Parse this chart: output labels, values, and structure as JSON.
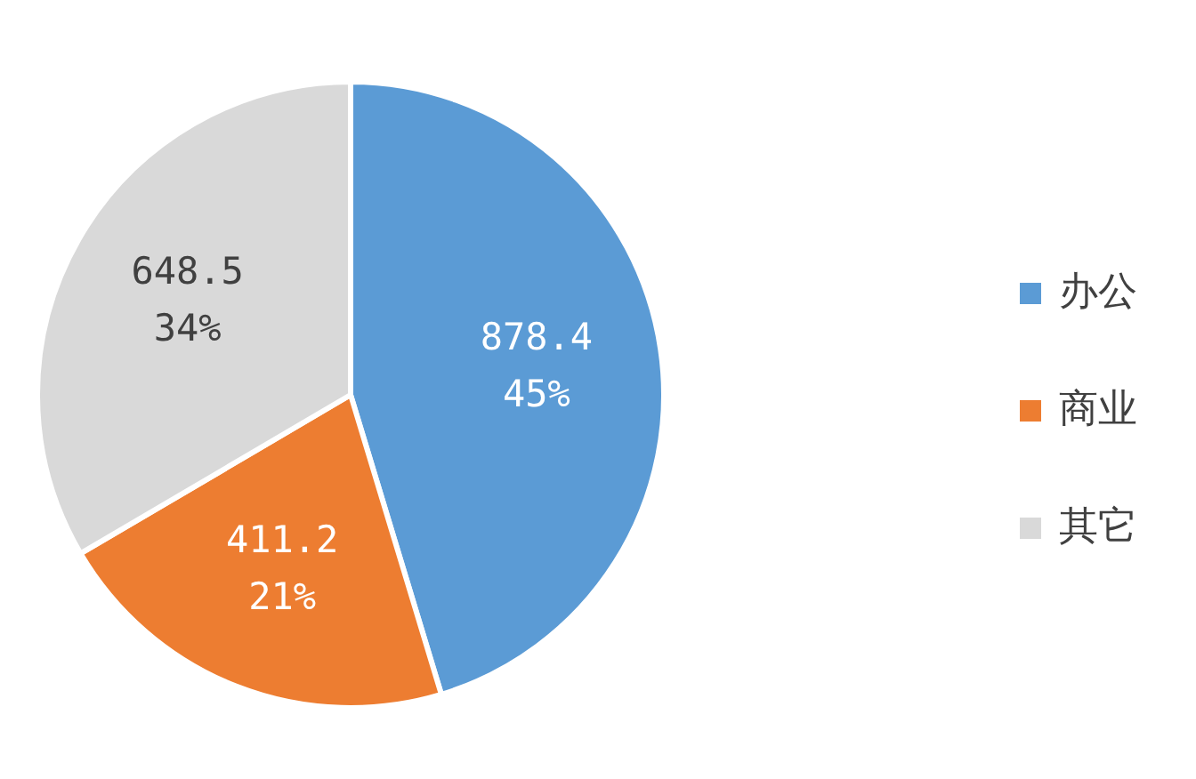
{
  "chart_data": {
    "type": "pie",
    "categories": [
      "办公",
      "商业",
      "其它"
    ],
    "values": [
      878.4,
      411.2,
      648.5
    ],
    "colors": [
      "#5b9bd5",
      "#ed7d31",
      "#d9d9d9"
    ],
    "value_labels": [
      "878.4\n45%",
      "411.2\n21%",
      "648.5\n34%"
    ],
    "legend": "right"
  }
}
